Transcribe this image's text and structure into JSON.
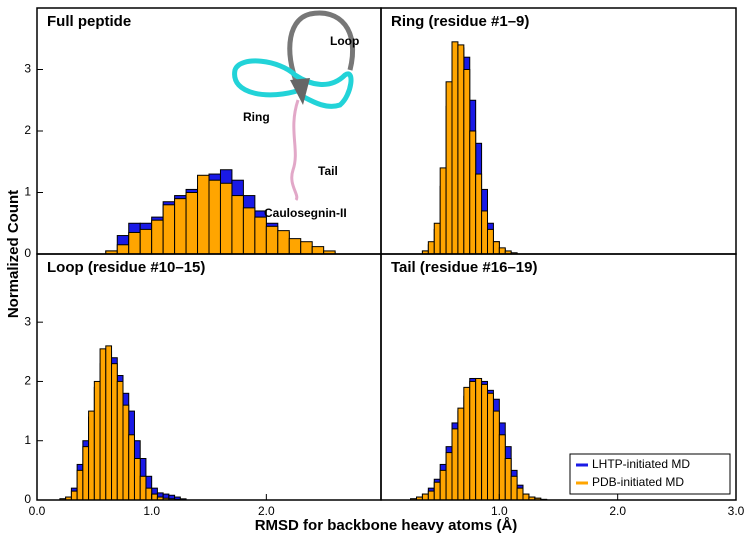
{
  "figure": {
    "xlabel": "RMSD for backbone heavy atoms (Å)",
    "ylabel": "Normalized Count"
  },
  "chart_data": [
    {
      "type": "histogram",
      "title": "Full peptide",
      "annotations": [
        "Loop",
        "Ring",
        "Tail",
        "Caulosegnin-II"
      ],
      "bins": [
        0.6,
        0.7,
        0.8,
        0.9,
        1.0,
        1.1,
        1.2,
        1.3,
        1.4,
        1.5,
        1.6,
        1.7,
        1.8,
        1.9,
        2.0,
        2.1,
        2.2,
        2.3,
        2.4,
        2.5,
        2.6
      ],
      "series": [
        {
          "name": "LHTP-initiated MD",
          "color": "#1a1ae6",
          "values": [
            0.05,
            0.3,
            0.5,
            0.5,
            0.6,
            0.85,
            0.95,
            1.05,
            1.1,
            1.3,
            1.37,
            1.2,
            0.95,
            0.7,
            0.5,
            0.35,
            0.2,
            0.12,
            0.05,
            0.02
          ]
        },
        {
          "name": "PDB-initiated MD",
          "color": "#ffa500",
          "values": [
            0.05,
            0.15,
            0.35,
            0.4,
            0.55,
            0.8,
            0.9,
            1.0,
            1.28,
            1.2,
            1.15,
            0.95,
            0.75,
            0.6,
            0.45,
            0.38,
            0.25,
            0.2,
            0.12,
            0.05
          ]
        }
      ],
      "xlim": [
        0,
        3
      ],
      "ylim": [
        0,
        4
      ],
      "yticks": [
        0,
        1,
        2,
        3
      ]
    },
    {
      "type": "histogram",
      "title": "Ring (residue #1–9)",
      "bins": [
        0.35,
        0.4,
        0.45,
        0.5,
        0.55,
        0.6,
        0.65,
        0.7,
        0.75,
        0.8,
        0.85,
        0.9,
        0.95,
        1.0,
        1.05,
        1.1,
        1.15
      ],
      "series": [
        {
          "name": "LHTP-initiated MD",
          "color": "#1a1ae6",
          "values": [
            0.05,
            0.15,
            0.4,
            1.1,
            2.4,
            3.1,
            3.35,
            3.2,
            2.5,
            1.8,
            1.05,
            0.5,
            0.2,
            0.08,
            0.03,
            0.01
          ]
        },
        {
          "name": "PDB-initiated MD",
          "color": "#ffa500",
          "values": [
            0.05,
            0.2,
            0.5,
            1.4,
            2.8,
            3.45,
            3.4,
            3.0,
            2.0,
            1.3,
            0.7,
            0.4,
            0.2,
            0.1,
            0.05,
            0.02
          ]
        }
      ],
      "xlim": [
        0,
        3
      ],
      "ylim": [
        0,
        4
      ]
    },
    {
      "type": "histogram",
      "title": "Loop (residue #10–15)",
      "bins": [
        0.2,
        0.25,
        0.3,
        0.35,
        0.4,
        0.45,
        0.5,
        0.55,
        0.6,
        0.65,
        0.7,
        0.75,
        0.8,
        0.85,
        0.9,
        0.95,
        1.0,
        1.05,
        1.1,
        1.15,
        1.2,
        1.25,
        1.3
      ],
      "series": [
        {
          "name": "LHTP-initiated MD",
          "color": "#1a1ae6",
          "values": [
            0.02,
            0.05,
            0.2,
            0.6,
            1.0,
            1.4,
            1.9,
            2.3,
            2.5,
            2.4,
            2.1,
            1.8,
            1.5,
            1.0,
            0.7,
            0.4,
            0.2,
            0.12,
            0.1,
            0.08,
            0.05,
            0.02
          ]
        },
        {
          "name": "PDB-initiated MD",
          "color": "#ffa500",
          "values": [
            0.02,
            0.05,
            0.15,
            0.5,
            0.9,
            1.5,
            2.0,
            2.55,
            2.6,
            2.3,
            2.0,
            1.6,
            1.1,
            0.7,
            0.4,
            0.2,
            0.1,
            0.05,
            0.03,
            0.02,
            0.01,
            0.005
          ]
        }
      ],
      "xlim": [
        0,
        3
      ],
      "ylim": [
        0,
        4.15
      ],
      "yticks": [
        0,
        1,
        2,
        3
      ],
      "xticks": [
        {
          "value": 0,
          "label": "0.0"
        },
        {
          "value": 1,
          "label": "1.0"
        },
        {
          "value": 2,
          "label": "2.0"
        }
      ]
    },
    {
      "type": "histogram",
      "title": "Tail (residue #16–19)",
      "legend": "lower right",
      "bins": [
        0.25,
        0.3,
        0.35,
        0.4,
        0.45,
        0.5,
        0.55,
        0.6,
        0.65,
        0.7,
        0.75,
        0.8,
        0.85,
        0.9,
        0.95,
        1.0,
        1.05,
        1.1,
        1.15,
        1.2,
        1.25,
        1.3,
        1.35,
        1.4
      ],
      "series": [
        {
          "name": "LHTP-initiated MD",
          "color": "#1a1ae6",
          "values": [
            0.02,
            0.05,
            0.1,
            0.2,
            0.35,
            0.6,
            0.9,
            1.3,
            1.5,
            1.75,
            2.05,
            2.0,
            2.0,
            1.85,
            1.7,
            1.3,
            0.9,
            0.5,
            0.25,
            0.1,
            0.05,
            0.03,
            0.01
          ]
        },
        {
          "name": "PDB-initiated MD",
          "color": "#ffa500",
          "values": [
            0.02,
            0.05,
            0.1,
            0.15,
            0.3,
            0.5,
            0.8,
            1.2,
            1.55,
            1.9,
            2.0,
            2.05,
            1.95,
            1.8,
            1.5,
            1.1,
            0.7,
            0.4,
            0.2,
            0.1,
            0.05,
            0.03,
            0.01
          ]
        }
      ],
      "xlim": [
        0,
        3
      ],
      "ylim": [
        0,
        4.15
      ],
      "xticks": [
        {
          "value": 1,
          "label": "1.0"
        },
        {
          "value": 2,
          "label": "2.0"
        },
        {
          "value": 3,
          "label": "3.0"
        }
      ]
    }
  ]
}
